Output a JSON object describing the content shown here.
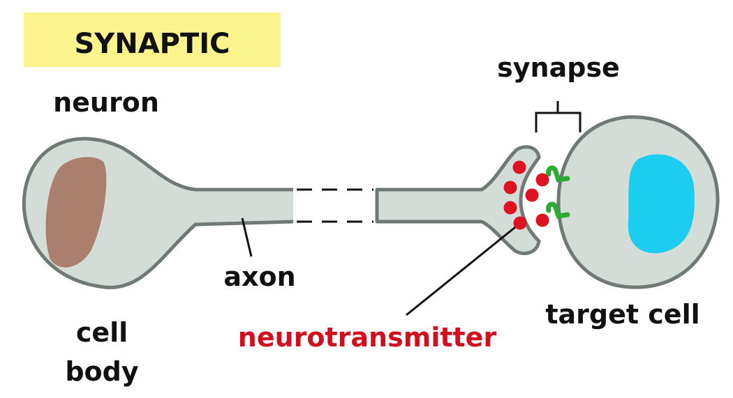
{
  "title": "SYNAPTIC",
  "labels": {
    "neuron": "neuron",
    "synapse": "synapse",
    "axon": "axon",
    "cell_body_line1": "cell",
    "cell_body_line2": "body",
    "target_cell": "target cell",
    "neurotransmitter": "neurotransmitter"
  },
  "colors": {
    "title_bg": "#fbf48c",
    "cell_fill": "#d3dcd6",
    "cell_outline": "#6f7a74",
    "nucleus_neuron": "#aa7f6d",
    "nucleus_target": "#1ccdf0",
    "neurotransmitter": "#df1222",
    "receptor": "#2bab34",
    "neurotransmitter_label": "#d0101e"
  }
}
